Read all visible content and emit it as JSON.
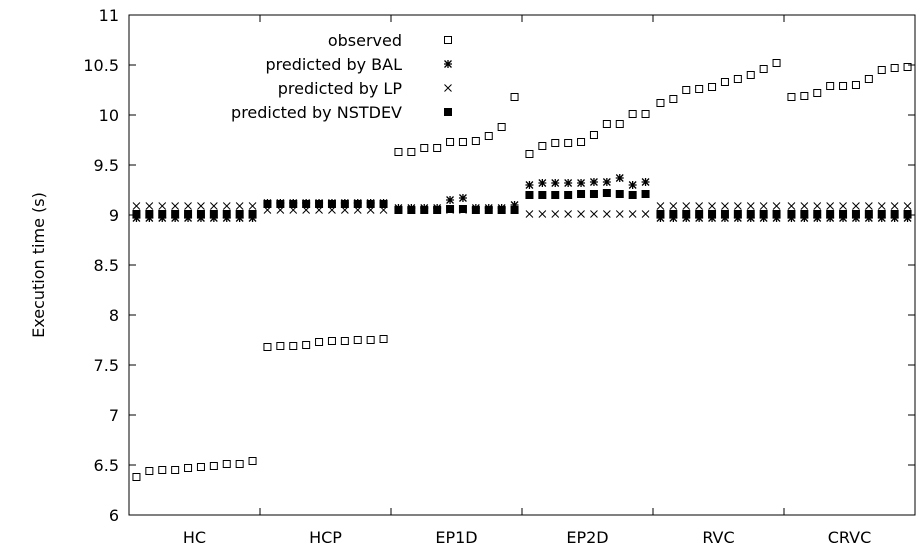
{
  "chart_data": {
    "type": "scatter",
    "title": "",
    "xlabel": "",
    "ylabel": "Execution time (s)",
    "ylim": [
      6,
      11
    ],
    "yticks": [
      "6",
      "6.5",
      "7",
      "7.5",
      "8",
      "8.5",
      "9",
      "9.5",
      "10",
      "10.5",
      "11"
    ],
    "categories": [
      "HC",
      "HCP",
      "EP1D",
      "EP2D",
      "RVC",
      "CRVC"
    ],
    "legend_position": "top-left",
    "grid": false,
    "series": [
      {
        "name": "observed",
        "marker": "open-square",
        "groups": [
          [
            6.38,
            6.44,
            6.45,
            6.45,
            6.47,
            6.48,
            6.49,
            6.51,
            6.51,
            6.54
          ],
          [
            7.68,
            7.69,
            7.69,
            7.7,
            7.73,
            7.74,
            7.74,
            7.75,
            7.75,
            7.76
          ],
          [
            9.63,
            9.63,
            9.67,
            9.67,
            9.73,
            9.73,
            9.74,
            9.79,
            9.88,
            10.18
          ],
          [
            9.61,
            9.69,
            9.72,
            9.72,
            9.73,
            9.8,
            9.91,
            9.91,
            10.01,
            10.01
          ],
          [
            10.12,
            10.16,
            10.25,
            10.26,
            10.28,
            10.33,
            10.36,
            10.4,
            10.46,
            10.52
          ],
          [
            10.18,
            10.19,
            10.22,
            10.29,
            10.29,
            10.3,
            10.36,
            10.45,
            10.47,
            10.48
          ]
        ]
      },
      {
        "name": "predicted by BAL",
        "marker": "asterisk",
        "groups": [
          [
            8.97,
            8.97,
            8.97,
            8.97,
            8.97,
            8.97,
            8.97,
            8.97,
            8.97,
            8.97
          ],
          [
            9.12,
            9.12,
            9.12,
            9.12,
            9.12,
            9.12,
            9.12,
            9.12,
            9.12,
            9.12
          ],
          [
            9.07,
            9.07,
            9.07,
            9.07,
            9.15,
            9.17,
            9.07,
            9.07,
            9.07,
            9.1
          ],
          [
            9.3,
            9.32,
            9.32,
            9.32,
            9.32,
            9.33,
            9.33,
            9.37,
            9.3,
            9.33
          ],
          [
            8.97,
            8.97,
            8.97,
            8.97,
            8.97,
            8.97,
            8.97,
            8.97,
            8.97,
            8.97
          ],
          [
            8.97,
            8.97,
            8.97,
            8.97,
            8.97,
            8.97,
            8.97,
            8.97,
            8.97,
            8.97
          ]
        ]
      },
      {
        "name": "predicted by LP",
        "marker": "cross",
        "groups": [
          [
            9.09,
            9.09,
            9.09,
            9.09,
            9.09,
            9.09,
            9.09,
            9.09,
            9.09,
            9.09
          ],
          [
            9.05,
            9.05,
            9.05,
            9.05,
            9.05,
            9.05,
            9.05,
            9.05,
            9.05,
            9.05
          ],
          [
            9.05,
            9.05,
            9.05,
            9.05,
            9.05,
            9.05,
            9.05,
            9.05,
            9.05,
            9.05
          ],
          [
            9.01,
            9.01,
            9.01,
            9.01,
            9.01,
            9.01,
            9.01,
            9.01,
            9.01,
            9.01
          ],
          [
            9.09,
            9.09,
            9.09,
            9.09,
            9.09,
            9.09,
            9.09,
            9.09,
            9.09,
            9.09
          ],
          [
            9.09,
            9.09,
            9.09,
            9.09,
            9.09,
            9.09,
            9.09,
            9.09,
            9.09,
            9.09
          ]
        ]
      },
      {
        "name": "predicted by NSTDEV",
        "marker": "filled-square",
        "groups": [
          [
            9.01,
            9.01,
            9.01,
            9.01,
            9.01,
            9.01,
            9.01,
            9.01,
            9.01,
            9.01
          ],
          [
            9.11,
            9.11,
            9.11,
            9.11,
            9.11,
            9.11,
            9.11,
            9.11,
            9.11,
            9.11
          ],
          [
            9.05,
            9.05,
            9.05,
            9.05,
            9.06,
            9.06,
            9.05,
            9.05,
            9.05,
            9.05
          ],
          [
            9.2,
            9.2,
            9.2,
            9.2,
            9.21,
            9.21,
            9.22,
            9.21,
            9.2,
            9.21
          ],
          [
            9.01,
            9.01,
            9.01,
            9.01,
            9.01,
            9.01,
            9.01,
            9.01,
            9.01,
            9.01
          ],
          [
            9.01,
            9.01,
            9.01,
            9.01,
            9.01,
            9.01,
            9.01,
            9.01,
            9.01,
            9.01
          ]
        ]
      }
    ]
  }
}
